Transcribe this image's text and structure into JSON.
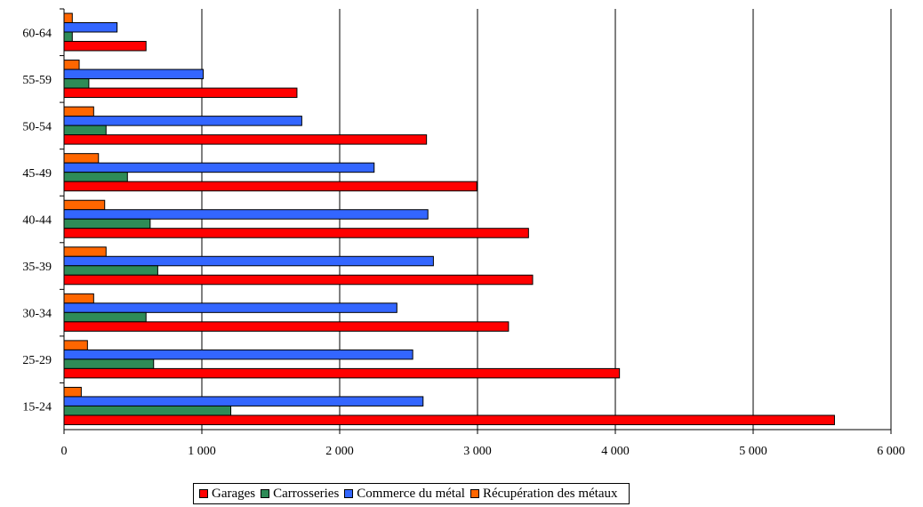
{
  "chart_data": {
    "type": "bar",
    "orientation": "horizontal",
    "categories": [
      "15-24",
      "25-29",
      "30-34",
      "35-39",
      "40-44",
      "45-49",
      "50-54",
      "55-59",
      "60-64"
    ],
    "series": [
      {
        "name": "Garages",
        "color": "#ff0000",
        "values": [
          5590,
          4030,
          3225,
          3400,
          3370,
          2995,
          2630,
          1690,
          595
        ]
      },
      {
        "name": "Carrosseries",
        "color": "#2e8b57",
        "values": [
          1210,
          650,
          595,
          680,
          625,
          460,
          305,
          180,
          60
        ]
      },
      {
        "name": "Commerce du métal",
        "color": "#3366ff",
        "values": [
          2605,
          2530,
          2415,
          2680,
          2640,
          2250,
          1725,
          1010,
          385
        ]
      },
      {
        "name": "Récupération des métaux",
        "color": "#ff6600",
        "values": [
          125,
          170,
          215,
          305,
          295,
          250,
          215,
          110,
          60
        ]
      }
    ],
    "x_ticks": [
      "0",
      "1 000",
      "2 000",
      "3 000",
      "4 000",
      "5 000",
      "6 000"
    ],
    "xlim": [
      0,
      6000
    ],
    "grid": "vertical",
    "legend_position": "bottom",
    "title": "",
    "xlabel": "",
    "ylabel": ""
  }
}
